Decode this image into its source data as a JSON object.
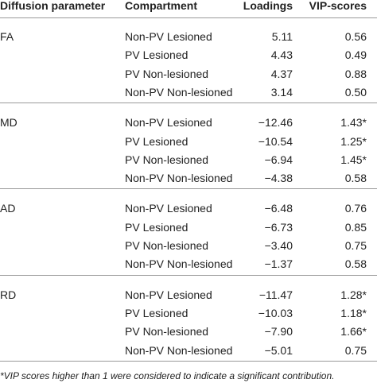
{
  "table": {
    "header": [
      "Diffusion parameter",
      "Compartment",
      "Loadings",
      "VIP-scores"
    ],
    "groups": [
      {
        "parameter": "FA",
        "rows": [
          [
            "Non-PV Lesioned",
            "5.11",
            "0.56"
          ],
          [
            "PV Lesioned",
            "4.43",
            "0.49"
          ],
          [
            "PV Non-lesioned",
            "4.37",
            "0.88"
          ],
          [
            "Non-PV Non-lesioned",
            "3.14",
            "0.50"
          ]
        ]
      },
      {
        "parameter": "MD",
        "rows": [
          [
            "Non-PV Lesioned",
            "−12.46",
            "1.43*"
          ],
          [
            "PV Lesioned",
            "−10.54",
            "1.25*"
          ],
          [
            "PV Non-lesioned",
            "−6.94",
            "1.45*"
          ],
          [
            "Non-PV Non-lesioned",
            "−4.38",
            "0.58"
          ]
        ]
      },
      {
        "parameter": "AD",
        "rows": [
          [
            "Non-PV Lesioned",
            "−6.48",
            "0.76"
          ],
          [
            "PV Lesioned",
            "−6.73",
            "0.85"
          ],
          [
            "PV Non-lesioned",
            "−3.40",
            "0.75"
          ],
          [
            "Non-PV Non-lesioned",
            "−1.37",
            "0.58"
          ]
        ]
      },
      {
        "parameter": "RD",
        "rows": [
          [
            "Non-PV Lesioned",
            "−11.47",
            "1.28*"
          ],
          [
            "PV Lesioned",
            "−10.03",
            "1.18*"
          ],
          [
            "PV Non-lesioned",
            "−7.90",
            "1.66*"
          ],
          [
            "Non-PV Non-lesioned",
            "−5.01",
            "0.75"
          ]
        ]
      }
    ],
    "footnote": "*VIP scores higher than 1 were considered to indicate a significant contribution."
  }
}
